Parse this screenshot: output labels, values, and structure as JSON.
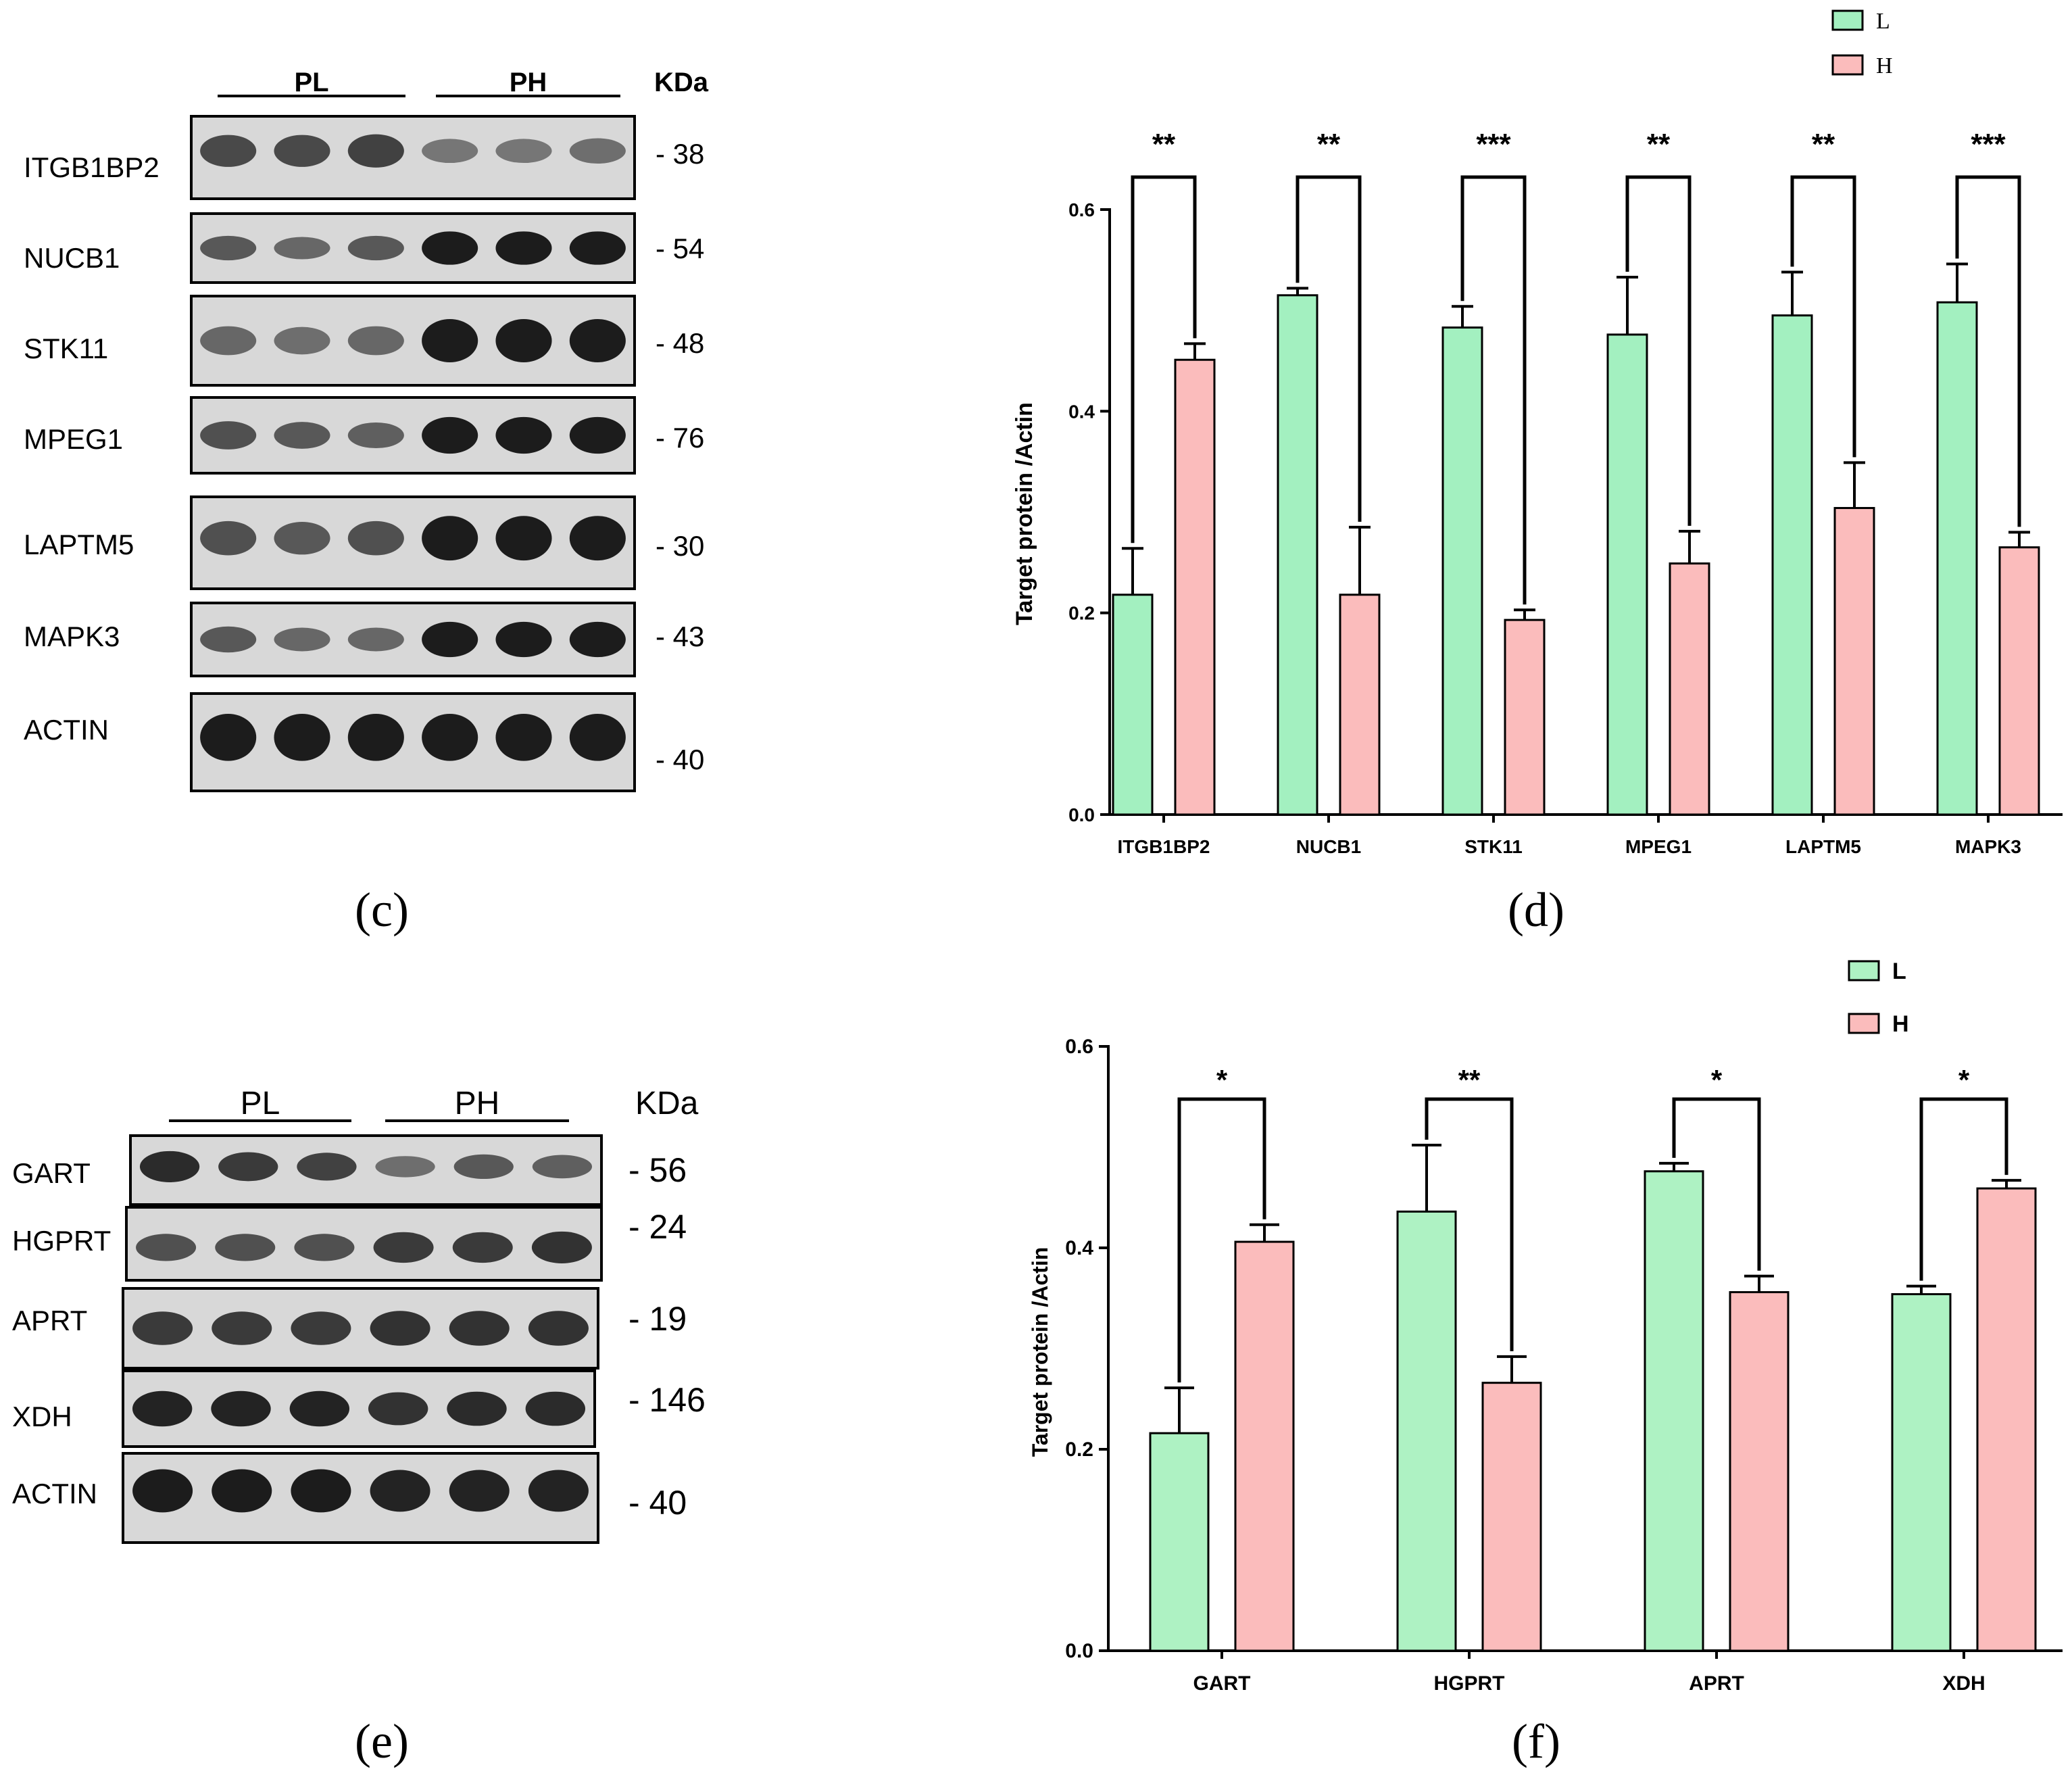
{
  "colors": {
    "L": "#a3f0c0",
    "H": "#fbbcbc",
    "L_f": "#aef2c3",
    "H_f": "#fbbcbc",
    "stroke": "#000000",
    "blot_bg": "#d8d8d8",
    "band": "#1a1a1a"
  },
  "panel_c": {
    "label": "(c)",
    "group1": "PL",
    "group2": "PH",
    "kda_header": "KDa",
    "rows": [
      {
        "protein": "ITGB1BP2",
        "kda": "- 38",
        "intensity": [
          0.65,
          0.65,
          0.7,
          0.35,
          0.35,
          0.4
        ]
      },
      {
        "protein": "NUCB1",
        "kda": "- 54",
        "intensity": [
          0.55,
          0.45,
          0.55,
          0.95,
          0.95,
          0.95
        ]
      },
      {
        "protein": "STK11",
        "kda": "- 48",
        "intensity": [
          0.45,
          0.4,
          0.45,
          0.95,
          0.95,
          0.95
        ]
      },
      {
        "protein": "MPEG1",
        "kda": "- 76",
        "intensity": [
          0.6,
          0.55,
          0.5,
          0.95,
          0.95,
          0.95
        ]
      },
      {
        "protein": "LAPTM5",
        "kda": "- 30",
        "intensity": [
          0.6,
          0.55,
          0.6,
          0.95,
          0.95,
          0.95
        ]
      },
      {
        "protein": "MAPK3",
        "kda": "- 43",
        "intensity": [
          0.55,
          0.45,
          0.45,
          0.95,
          0.95,
          0.95
        ]
      },
      {
        "protein": "ACTIN",
        "kda": "- 40",
        "intensity": [
          0.95,
          0.95,
          0.95,
          0.95,
          0.95,
          0.95
        ]
      }
    ]
  },
  "panel_e": {
    "label": "(e)",
    "group1": "PL",
    "group2": "PH",
    "kda_header": "KDa",
    "rows": [
      {
        "protein": "GART",
        "kda": "- 56",
        "intensity": [
          0.85,
          0.75,
          0.7,
          0.4,
          0.55,
          0.5
        ]
      },
      {
        "protein": "HGPRT",
        "kda": "- 24",
        "intensity": [
          0.6,
          0.6,
          0.6,
          0.75,
          0.75,
          0.8
        ]
      },
      {
        "protein": "APRT",
        "kda": "- 19",
        "intensity": [
          0.75,
          0.75,
          0.75,
          0.8,
          0.8,
          0.8
        ]
      },
      {
        "protein": "XDH",
        "kda": "- 146",
        "intensity": [
          0.9,
          0.9,
          0.9,
          0.8,
          0.85,
          0.85
        ]
      },
      {
        "protein": "ACTIN",
        "kda": "- 40",
        "intensity": [
          0.95,
          0.95,
          0.95,
          0.9,
          0.9,
          0.9
        ]
      }
    ]
  },
  "chart_data": [
    {
      "panel": "(d)",
      "type": "bar",
      "title": "",
      "xlabel": "",
      "ylabel": "Target protein /Actin",
      "ylim": [
        0,
        0.6
      ],
      "yticks": [
        0.0,
        0.2,
        0.4,
        0.6
      ],
      "ytick_labels": [
        "0.0",
        "0.2",
        "0.4",
        "0.6"
      ],
      "categories": [
        "ITGB1BP2",
        "NUCB1",
        "STK11",
        "MPEG1",
        "LAPTM5",
        "MAPK3"
      ],
      "series": [
        {
          "name": "L",
          "values": [
            0.218,
            0.515,
            0.483,
            0.476,
            0.495,
            0.508
          ],
          "errors": [
            0.046,
            0.007,
            0.021,
            0.057,
            0.043,
            0.038
          ]
        },
        {
          "name": "H",
          "values": [
            0.451,
            0.218,
            0.193,
            0.249,
            0.304,
            0.265
          ],
          "errors": [
            0.016,
            0.067,
            0.01,
            0.032,
            0.045,
            0.015
          ]
        }
      ],
      "significance": [
        "**",
        "**",
        "***",
        "**",
        "**",
        "***"
      ],
      "legend": [
        "L",
        "H"
      ],
      "legend_position": "top-right"
    },
    {
      "panel": "(f)",
      "type": "bar",
      "title": "",
      "xlabel": "",
      "ylabel": "Target protein /Actin",
      "ylim": [
        0,
        0.6
      ],
      "yticks": [
        0.0,
        0.2,
        0.4,
        0.6
      ],
      "ytick_labels": [
        "0.0",
        "0.2",
        "0.4",
        "0.6"
      ],
      "categories": [
        "GART",
        "HGPRT",
        "APRT",
        "XDH"
      ],
      "series": [
        {
          "name": "L",
          "values": [
            0.216,
            0.436,
            0.476,
            0.354
          ],
          "errors": [
            0.045,
            0.066,
            0.008,
            0.008
          ]
        },
        {
          "name": "H",
          "values": [
            0.406,
            0.266,
            0.356,
            0.459
          ],
          "errors": [
            0.017,
            0.026,
            0.016,
            0.008
          ]
        }
      ],
      "significance": [
        "*",
        "**",
        "*",
        "*"
      ],
      "legend": [
        "L",
        "H"
      ],
      "legend_position": "top-right"
    }
  ]
}
